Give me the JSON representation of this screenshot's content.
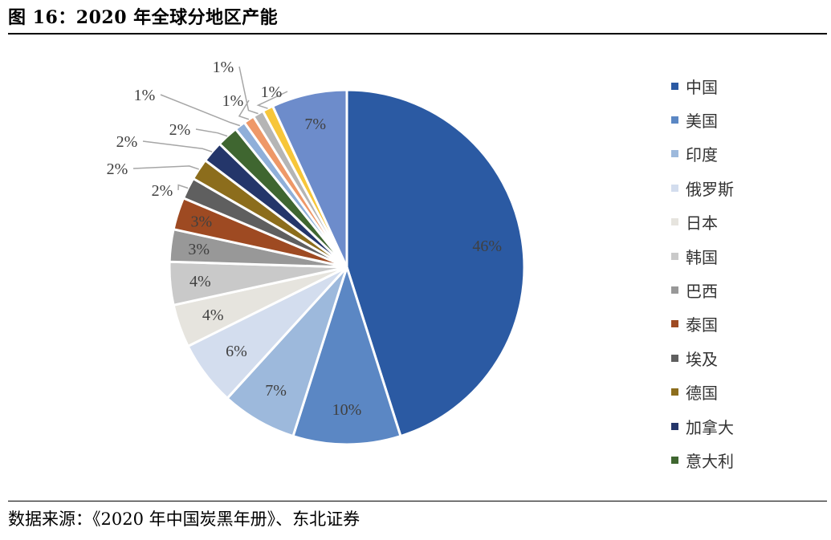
{
  "figure": {
    "title": "图 16：2020 年全球分地区产能",
    "source": "数据来源：《2020 年中国炭黑年册》、东北证券"
  },
  "chart_data": {
    "type": "pie",
    "title": "",
    "legend_position": "right",
    "slices": [
      {
        "name": "中国",
        "value": 46,
        "label": "46%",
        "color": "#2B5AA3"
      },
      {
        "name": "美国",
        "value": 10,
        "label": "10%",
        "color": "#5B87C4"
      },
      {
        "name": "印度",
        "value": 7,
        "label": "7%",
        "color": "#9DB9DC"
      },
      {
        "name": "俄罗斯",
        "value": 6,
        "label": "6%",
        "color": "#D3DDEE"
      },
      {
        "name": "日本",
        "value": 4,
        "label": "4%",
        "color": "#E6E4DE"
      },
      {
        "name": "韩国",
        "value": 4,
        "label": "4%",
        "color": "#C9C9C9"
      },
      {
        "name": "巴西",
        "value": 3,
        "label": "3%",
        "color": "#989898"
      },
      {
        "name": "泰国",
        "value": 3,
        "label": "3%",
        "color": "#9E4A22"
      },
      {
        "name": "埃及",
        "value": 2,
        "label": "2%",
        "color": "#5F5F5F"
      },
      {
        "name": "德国",
        "value": 2,
        "label": "2%",
        "color": "#8C6D1C"
      },
      {
        "name": "加拿大",
        "value": 2,
        "label": "2%",
        "color": "#24366A"
      },
      {
        "name": "意大利",
        "value": 2,
        "label": "2%",
        "color": "#3F6630"
      },
      {
        "name": "",
        "value": 1,
        "label": "1%",
        "color": "#8FAFD9"
      },
      {
        "name": "",
        "value": 1,
        "label": "1%",
        "color": "#EE9868"
      },
      {
        "name": "",
        "value": 1,
        "label": "1%",
        "color": "#B5B5B5"
      },
      {
        "name": "",
        "value": 1,
        "label": "1%",
        "color": "#F7C63A"
      },
      {
        "name": "",
        "value": 7,
        "label": "7%",
        "color": "#6D8CCB"
      }
    ]
  }
}
